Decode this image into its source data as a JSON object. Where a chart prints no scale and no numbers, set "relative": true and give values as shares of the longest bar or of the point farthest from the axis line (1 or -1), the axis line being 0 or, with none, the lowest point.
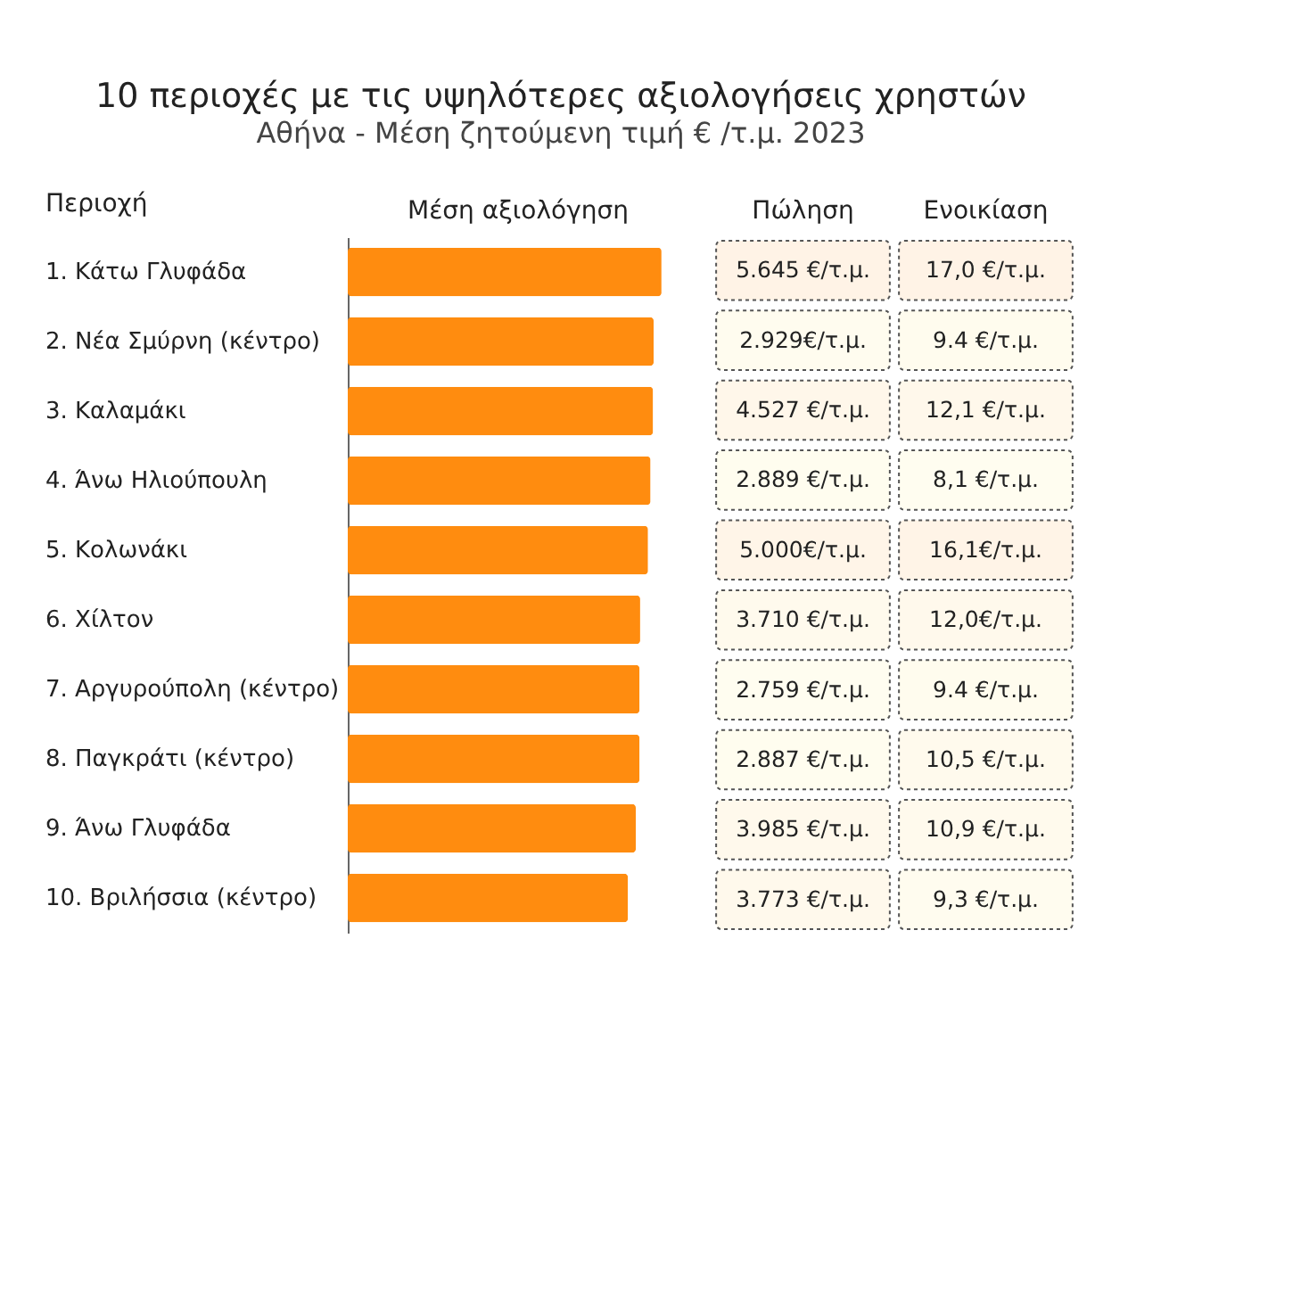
{
  "chart_data": [
    {
      "type": "bar",
      "orientation": "horizontal",
      "relative": true,
      "title": "10 περιοχές με τις υψηλότερες αξιολογήσεις χρηστών",
      "subtitle": "Αθήνα - Μέση ζητούμενη τιμή € /τ.μ. 2023",
      "ylabel": "Περιοχή",
      "xlabel": "Μέση αξιολόγηση",
      "categories": [
        "1. Κάτω Γλυφάδα",
        "2. Νέα Σμύρνη (κέντρο)",
        "3. Καλαμάκι",
        "4. Άνω Ηλιούπουλη",
        "5. Κολωνάκι",
        "6. Χίλτον",
        "7. Αργυρούπολη (κέντρο)",
        "8. Παγκράτι (κέντρο)",
        "9. Άνω Γλυφάδα",
        "10. Βριλήσσια (κέντρο)"
      ],
      "values": [
        1,
        0.975,
        0.973,
        0.965,
        0.957,
        0.932,
        0.93,
        0.93,
        0.918,
        0.893
      ],
      "color": "#ff8c0f"
    },
    {
      "type": "heatmap",
      "categories": [
        "Πώληση",
        "Ενοικίαση"
      ],
      "y_categories": [
        null,
        null,
        null,
        null,
        null,
        null,
        null,
        null,
        null,
        null
      ],
      "cells": [
        [
          5645,
          17.0
        ],
        [
          2929,
          9.4
        ],
        [
          4527,
          12.1
        ],
        [
          2889,
          8.1
        ],
        [
          5000,
          16.1
        ],
        [
          3710,
          12.0
        ],
        [
          2759,
          9.4
        ],
        [
          2887,
          10.5
        ],
        [
          3985,
          10.9
        ],
        [
          3773,
          9.3
        ]
      ],
      "cell_labels": [
        [
          "5.645 €/τ.μ.",
          "17,0 €/τ.μ."
        ],
        [
          "2.929€/τ.μ.",
          "9.4 €/τ.μ."
        ],
        [
          "4.527 €/τ.μ.",
          "12,1 €/τ.μ."
        ],
        [
          "2.889 €/τ.μ.",
          "8,1 €/τ.μ."
        ],
        [
          "5.000€/τ.μ.",
          "16,1€/τ.μ."
        ],
        [
          "3.710 €/τ.μ.",
          "12,0€/τ.μ."
        ],
        [
          "2.759 €/τ.μ.",
          "9.4 €/τ.μ."
        ],
        [
          "2.887 €/τ.μ.",
          "10,5 €/τ.μ."
        ],
        [
          "3.985 €/τ.μ.",
          "10,9 €/τ.μ."
        ],
        [
          "3.773 €/τ.μ.",
          "9,3 €/τ.μ."
        ]
      ]
    }
  ]
}
